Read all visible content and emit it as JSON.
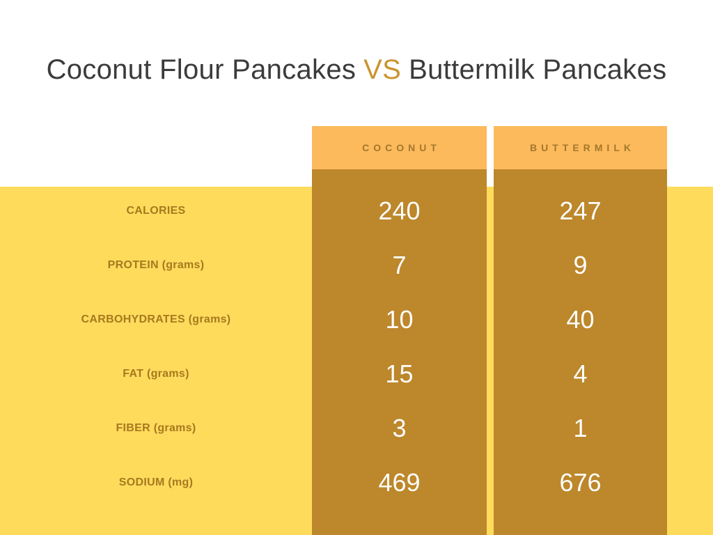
{
  "title": {
    "part1": "Coconut Flour Pancakes",
    "vs": "VS",
    "part2": "Buttermilk Pancakes"
  },
  "chart_data": {
    "type": "table",
    "title": "Coconut Flour Pancakes VS Buttermilk Pancakes",
    "columns": [
      "COCONUT",
      "BUTTERMILK"
    ],
    "row_labels": [
      "CALORIES",
      "PROTEIN (grams)",
      "CARBOHYDRATES (grams)",
      "FAT (grams)",
      "FIBER (grams)",
      "SODIUM (mg)"
    ],
    "series": [
      {
        "name": "COCONUT",
        "values": [
          240,
          7,
          10,
          15,
          3,
          469
        ]
      },
      {
        "name": "BUTTERMILK",
        "values": [
          247,
          9,
          40,
          4,
          1,
          676
        ]
      }
    ],
    "rows": [
      {
        "label": "CALORIES",
        "coconut": "240",
        "buttermilk": "247"
      },
      {
        "label": "PROTEIN (grams)",
        "coconut": "7",
        "buttermilk": "9"
      },
      {
        "label": "CARBOHYDRATES (grams)",
        "coconut": "10",
        "buttermilk": "40"
      },
      {
        "label": "FAT (grams)",
        "coconut": "15",
        "buttermilk": "4"
      },
      {
        "label": "FIBER (grams)",
        "coconut": "3",
        "buttermilk": "1"
      },
      {
        "label": "SODIUM (mg)",
        "coconut": "469",
        "buttermilk": "676"
      }
    ],
    "colors": {
      "background_top": "#FFFFFF",
      "background_band": "#FFDB5C",
      "column_body": "#BD872B",
      "column_header": "#FCBA5C",
      "label_text": "#A6791E",
      "header_text": "#A3772B",
      "value_text": "#FFFFFF",
      "title_text": "#3B3B3B",
      "vs_accent": "#C9952F"
    },
    "layout": {
      "legend": "none",
      "grid": "off"
    }
  }
}
